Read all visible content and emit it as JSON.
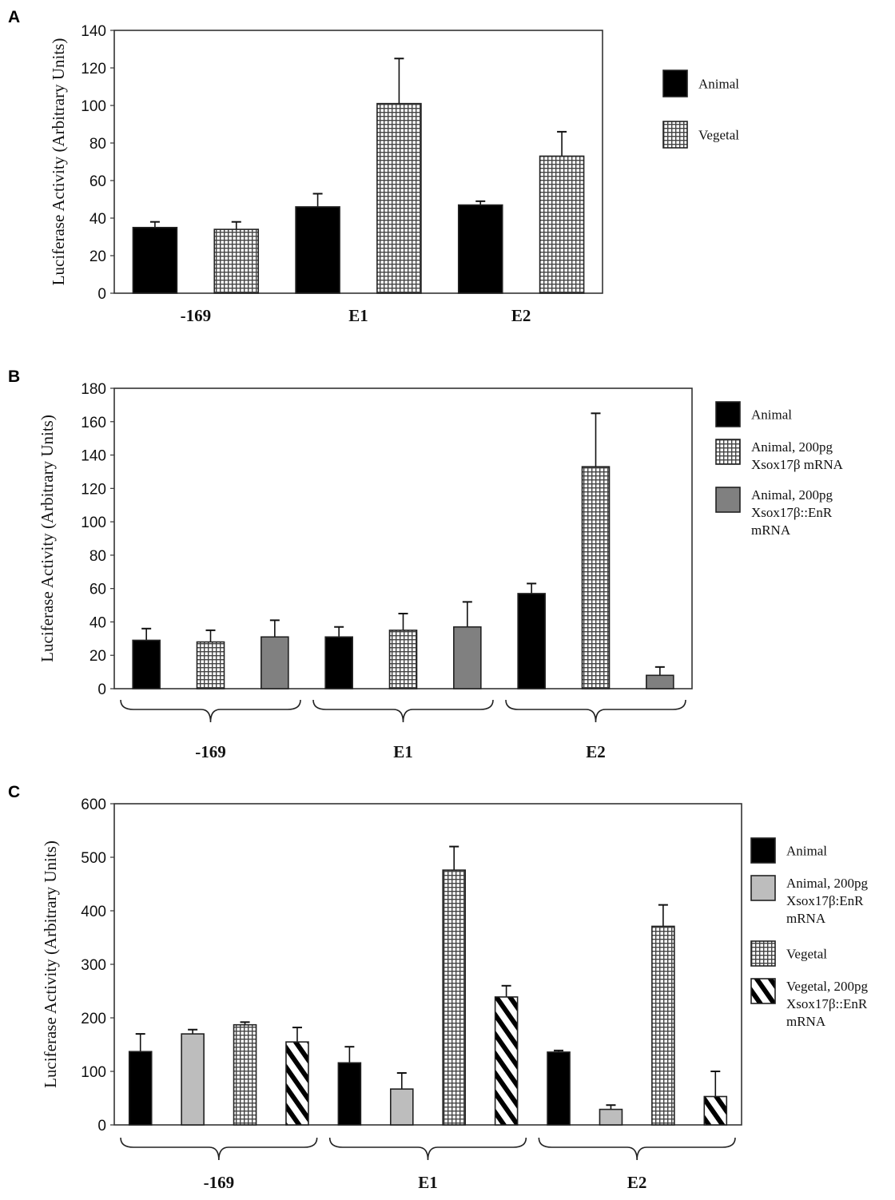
{
  "chart_data": [
    {
      "panel": "A",
      "type": "bar",
      "ylabel": "Luciferase Activity (Arbitrary Units)",
      "xlabel": "",
      "ylim": [
        0,
        140
      ],
      "yticks": [
        0,
        20,
        40,
        60,
        80,
        100,
        120,
        140
      ],
      "categories": [
        "-169",
        "E1",
        "E2"
      ],
      "category_brackets": false,
      "legend_position": "right",
      "series": [
        {
          "name": "Animal",
          "pattern": "solid-black",
          "values": [
            35,
            46,
            47
          ],
          "error_upper": [
            38,
            53,
            49
          ]
        },
        {
          "name": "Vegetal",
          "pattern": "dotted",
          "values": [
            34,
            101,
            73
          ],
          "error_upper": [
            38,
            125,
            86
          ]
        }
      ]
    },
    {
      "panel": "B",
      "type": "bar",
      "ylabel": "Luciferase Activity (Arbitrary Units)",
      "xlabel": "",
      "ylim": [
        0,
        180
      ],
      "yticks": [
        0,
        20,
        40,
        60,
        80,
        100,
        120,
        140,
        160,
        180
      ],
      "categories": [
        "-169",
        "E1",
        "E2"
      ],
      "category_brackets": true,
      "legend_position": "right",
      "series": [
        {
          "name": "Animal",
          "legend_lines": [
            "Animal"
          ],
          "pattern": "solid-black",
          "values": [
            29,
            31,
            57
          ],
          "error_upper": [
            36,
            37,
            63
          ]
        },
        {
          "name": "Animal, 200pg Xsox17β mRNA",
          "legend_lines": [
            "Animal, 200pg",
            "Xsox17β mRNA"
          ],
          "pattern": "dotted",
          "values": [
            28,
            35,
            133
          ],
          "error_upper": [
            35,
            45,
            165
          ]
        },
        {
          "name": "Animal, 200pg Xsox17β::EnR mRNA",
          "legend_lines": [
            "Animal, 200pg",
            "Xsox17β::EnR",
            "mRNA"
          ],
          "pattern": "solid-darkgray",
          "values": [
            31,
            37,
            8
          ],
          "error_upper": [
            41,
            52,
            13
          ]
        }
      ]
    },
    {
      "panel": "C",
      "type": "bar",
      "ylabel": "Luciferase Activity (Arbitrary Units)",
      "xlabel": "",
      "ylim": [
        0,
        600
      ],
      "yticks": [
        0,
        100,
        200,
        300,
        400,
        500,
        600
      ],
      "categories": [
        "-169",
        "E1",
        "E2"
      ],
      "category_brackets": true,
      "legend_position": "right",
      "series": [
        {
          "name": "Animal",
          "legend_lines": [
            "Animal"
          ],
          "pattern": "solid-black",
          "values": [
            137,
            116,
            136
          ],
          "error_upper": [
            170,
            146,
            139
          ]
        },
        {
          "name": "Animal, 200pg Xsox17β:EnR mRNA",
          "legend_lines": [
            "Animal, 200pg",
            "Xsox17β:EnR",
            "mRNA"
          ],
          "pattern": "solid-lightgray",
          "values": [
            170,
            67,
            29
          ],
          "error_upper": [
            178,
            97,
            37
          ]
        },
        {
          "name": "Vegetal",
          "legend_lines": [
            "Vegetal"
          ],
          "pattern": "dotted",
          "values": [
            187,
            476,
            371
          ],
          "error_upper": [
            192,
            520,
            411
          ]
        },
        {
          "name": "Vegetal, 200pg Xsox17β::EnR mRNA",
          "legend_lines": [
            "Vegetal, 200pg",
            "Xsox17β::EnR",
            "mRNA"
          ],
          "pattern": "hatched",
          "values": [
            155,
            239,
            53
          ],
          "error_upper": [
            182,
            260,
            100
          ]
        }
      ]
    }
  ],
  "colors": {
    "solid-black": "#000000",
    "solid-darkgray": "#808080",
    "solid-lightgray": "#bdbdbd",
    "dotted_bg": "#ffffff",
    "dotted_fg": "#555555",
    "axis": "#333333"
  }
}
